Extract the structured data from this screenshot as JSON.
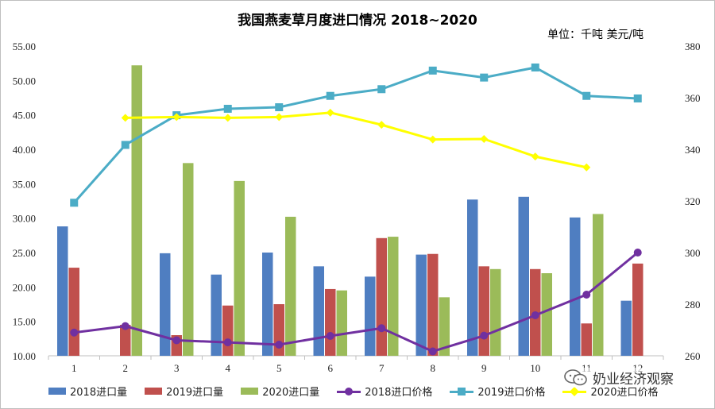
{
  "title": "我国燕麦草月度进口情况 2018~2020",
  "unit_note": "单位：千吨  美元/吨",
  "watermark": "奶业经济观察",
  "colors": {
    "bar2018": "#4f7ec1",
    "bar2019": "#c0504d",
    "bar2020": "#9bbb59",
    "line2018": "#7030a0",
    "line2019": "#4bacc6",
    "line2020": "#ffff00",
    "axis": "#bfbfbf"
  },
  "chart_data": {
    "type": "bar",
    "categories": [
      "1",
      "2",
      "3",
      "4",
      "5",
      "6",
      "7",
      "8",
      "9",
      "10",
      "11",
      "12"
    ],
    "left_axis": {
      "min": 10,
      "max": 55,
      "step": 5,
      "tick_labels": [
        "10.00",
        "15.00",
        "20.00",
        "25.00",
        "30.00",
        "35.00",
        "40.00",
        "45.00",
        "50.00",
        "55.00"
      ]
    },
    "right_axis": {
      "min": 260,
      "max": 380,
      "step": 20,
      "tick_labels": [
        "260",
        "280",
        "300",
        "320",
        "340",
        "360",
        "380"
      ]
    },
    "bar_series": [
      {
        "name": "2018进口量",
        "values": [
          28.8,
          null,
          24.9,
          21.8,
          25.0,
          23.0,
          21.5,
          24.7,
          32.7,
          33.1,
          30.1,
          18.0
        ]
      },
      {
        "name": "2019进口量",
        "values": [
          22.8,
          14.5,
          13.0,
          17.3,
          17.5,
          19.7,
          27.1,
          24.8,
          23.0,
          22.6,
          14.7,
          23.4
        ]
      },
      {
        "name": "2020进口量",
        "values": [
          null,
          52.2,
          38.0,
          35.4,
          30.2,
          19.5,
          27.3,
          18.5,
          22.6,
          22.0,
          30.6,
          null
        ]
      }
    ],
    "line_series": [
      {
        "name": "2018进口价格",
        "marker": "circle",
        "values": [
          269,
          271.5,
          266,
          265.2,
          264.3,
          267.7,
          270.7,
          261.7,
          267.8,
          275.7,
          283.7,
          300
        ]
      },
      {
        "name": "2019进口价格",
        "marker": "square",
        "values": [
          319.3,
          341.7,
          353.2,
          355.7,
          356.3,
          360.7,
          363.3,
          370.5,
          367.8,
          371.7,
          360.7,
          359.7
        ]
      },
      {
        "name": "2020进口价格",
        "marker": "diamond",
        "values": [
          null,
          352.2,
          352.5,
          352.2,
          352.5,
          354.2,
          349.5,
          343.8,
          344.0,
          337.2,
          333.0,
          null
        ]
      }
    ]
  }
}
